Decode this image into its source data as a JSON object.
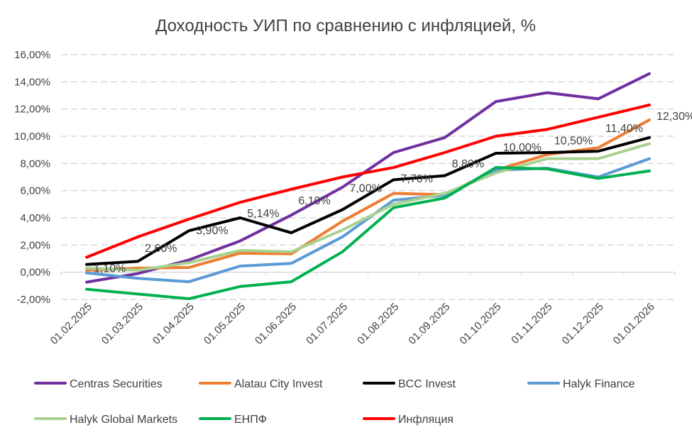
{
  "chart_data": {
    "type": "line",
    "title": "Доходность УИП по сравнению с инфляцией, %",
    "xlabel": "",
    "ylabel": "",
    "categories": [
      "01.02.2025",
      "01.03.2025",
      "01.04.2025",
      "01.05.2025",
      "01.06.2025",
      "01.07.2025",
      "01.08.2025",
      "01.09.2025",
      "01.10.2025",
      "01.11.2025",
      "01.12.2025",
      "01.01.2026"
    ],
    "ylim": [
      -2,
      16
    ],
    "yticks": [
      -2,
      0,
      2,
      4,
      6,
      8,
      10,
      12,
      14,
      16
    ],
    "ytick_labels": [
      "-2,00%",
      "0,00%",
      "2,00%",
      "4,00%",
      "6,00%",
      "8,00%",
      "10,00%",
      "12,00%",
      "14,00%",
      "16,00%"
    ],
    "grid": "horizontal-dashed",
    "legend_position": "bottom",
    "series": [
      {
        "name": "Centras Securities",
        "color": "#7030A0",
        "values": [
          -0.73,
          -0.1,
          0.9,
          2.3,
          4.2,
          6.25,
          8.8,
          9.9,
          12.55,
          13.2,
          12.75,
          14.6
        ]
      },
      {
        "name": "Alatau City Invest",
        "color": "#ED7D31",
        "values": [
          0.15,
          0.3,
          0.35,
          1.4,
          1.35,
          3.75,
          5.8,
          5.7,
          7.5,
          8.65,
          9.15,
          11.2
        ]
      },
      {
        "name": "BCC Invest",
        "color": "#000000",
        "values": [
          0.57,
          0.8,
          3.05,
          4.0,
          2.9,
          4.6,
          6.8,
          7.1,
          8.75,
          8.8,
          8.9,
          9.9
        ]
      },
      {
        "name": "Halyk Finance",
        "color": "#5B9BD5",
        "values": [
          -0.05,
          -0.45,
          -0.7,
          0.45,
          0.65,
          2.6,
          5.3,
          5.65,
          7.5,
          7.65,
          7.0,
          8.35
        ]
      },
      {
        "name": "Halyk Global Markets",
        "color": "#A9D18E",
        "values": [
          0.3,
          0.15,
          0.7,
          1.6,
          1.5,
          3.1,
          5.0,
          5.8,
          7.3,
          8.35,
          8.35,
          9.45
        ]
      },
      {
        "name": "ЕНПФ",
        "color": "#00B050",
        "values": [
          -1.25,
          -1.6,
          -1.95,
          -1.05,
          -0.7,
          1.5,
          4.75,
          5.45,
          7.7,
          7.6,
          6.9,
          7.45
        ]
      },
      {
        "name": "Инфляция",
        "color": "#FF0000",
        "values": [
          1.1,
          2.6,
          3.9,
          5.14,
          6.1,
          7.0,
          7.7,
          8.8,
          10.0,
          10.5,
          11.4,
          12.3
        ],
        "data_labels": [
          "1,10%",
          "2,60%",
          "3,90%",
          "5,14%",
          "6,10%",
          "7,00%",
          "7,70%",
          "8,80%",
          "10,00%",
          "10,50%",
          "11,40%",
          "12,30%"
        ]
      }
    ]
  }
}
